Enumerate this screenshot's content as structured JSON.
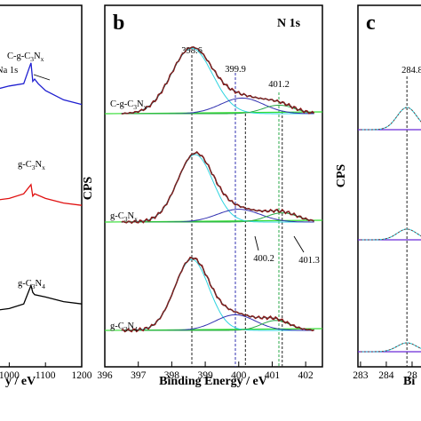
{
  "colors": {
    "panel_a": {
      "C-g-C3Nx": "#1f1fd0",
      "g-C3Nx": "#e01010",
      "g-C3N4": "#000000"
    },
    "raw_data": "#8b1a1a",
    "fit": "#3a3a3a",
    "peak1": "#2fd4e0",
    "peak2": "#3030b0",
    "peak3": "#2aa84a",
    "baseline": "#33dd33"
  },
  "chart_data": [
    {
      "panel": "a",
      "type": "line",
      "title": "",
      "xlabel": "y / eV",
      "x_ticks": [
        "00",
        "1000",
        "1100",
        "1200"
      ],
      "xlim": [
        950,
        1200
      ],
      "series": [
        {
          "key": "C-g-C3Nx",
          "label_main": "C-g-C",
          "label_sub1": "3",
          "label_mid": "N",
          "label_sub2": "x",
          "x": [
            950,
            1000,
            1040,
            1060,
            1065,
            1070,
            1080,
            1100,
            1150,
            1200
          ],
          "y": [
            0.0,
            0.2,
            0.3,
            1.2,
            0.4,
            0.5,
            0.3,
            0.0,
            -0.4,
            -0.6
          ]
        },
        {
          "key": "g-C3Nx",
          "label_main": "g-C",
          "label_sub1": "3",
          "label_mid": "N",
          "label_sub2": "x",
          "x": [
            950,
            1000,
            1040,
            1060,
            1065,
            1070,
            1100,
            1150,
            1200
          ],
          "y": [
            0.0,
            0.1,
            0.3,
            0.7,
            0.2,
            0.3,
            0.1,
            -0.1,
            -0.2
          ]
        },
        {
          "key": "g-C3N4",
          "label_main": "g-C",
          "label_sub1": "3",
          "label_mid": "N",
          "label_sub2": "4",
          "x": [
            950,
            1000,
            1040,
            1060,
            1065,
            1070,
            1100,
            1150,
            1200
          ],
          "y": [
            0.0,
            0.1,
            0.3,
            1.1,
            0.8,
            0.7,
            0.6,
            0.4,
            0.3
          ]
        }
      ],
      "annotation": "Na 1s"
    },
    {
      "panel": "b",
      "type": "line",
      "title": "N 1s",
      "xlabel": "Binding Energy / eV",
      "ylabel": "CPS",
      "xlim": [
        396,
        402.5
      ],
      "x_ticks": [
        396,
        397,
        398,
        399,
        400,
        401,
        402
      ],
      "reference_lines": [
        {
          "x": 398.6,
          "label": "398.6",
          "color": "#222222"
        },
        {
          "x": 399.9,
          "label": "399.9",
          "color": "#3030b0"
        },
        {
          "x": 400.2,
          "label": "",
          "color": "#222222"
        },
        {
          "x": 401.2,
          "label": "401.2",
          "color": "#2aa84a"
        },
        {
          "x": 401.3,
          "label": "",
          "color": "#222222"
        }
      ],
      "callouts": [
        {
          "x": 400.2,
          "label": "400.2"
        },
        {
          "x": 401.3,
          "label": "401.3"
        }
      ],
      "spectra": [
        {
          "key": "C-g-C3Nx",
          "label_main": "C-g-C",
          "label_sub1": "3",
          "label_mid": "N",
          "label_sub2": "x",
          "peaks": [
            {
              "center": 398.6,
              "height": 0.92,
              "fwhm": 1.45
            },
            {
              "center": 400.1,
              "height": 0.22,
              "fwhm": 1.5
            },
            {
              "center": 401.2,
              "height": 0.12,
              "fwhm": 1.1
            }
          ]
        },
        {
          "key": "g-C3Nx",
          "label_main": "g-C",
          "label_sub1": "3",
          "label_mid": "N",
          "label_sub2": "x",
          "peaks": [
            {
              "center": 398.7,
              "height": 0.95,
              "fwhm": 1.25
            },
            {
              "center": 400.0,
              "height": 0.18,
              "fwhm": 1.5
            },
            {
              "center": 401.3,
              "height": 0.13,
              "fwhm": 1.1
            }
          ]
        },
        {
          "key": "g-C3N4",
          "label_main": "g-C",
          "label_sub1": "3",
          "label_mid": "N",
          "label_sub2": "4",
          "peaks": [
            {
              "center": 398.6,
              "height": 1.0,
              "fwhm": 1.2
            },
            {
              "center": 399.9,
              "height": 0.22,
              "fwhm": 1.4
            },
            {
              "center": 401.1,
              "height": 0.14,
              "fwhm": 1.0
            }
          ]
        }
      ]
    },
    {
      "panel": "c",
      "type": "line",
      "xlabel": "Bi",
      "ylabel": "CPS",
      "xlim": [
        282.9,
        286
      ],
      "x_ticks": [
        "283",
        "284",
        "28"
      ],
      "reference_lines": [
        {
          "x": 284.8,
          "label": "284.8",
          "color": "#222222"
        }
      ],
      "spectra": [
        {
          "height": 0.25,
          "center": 284.8,
          "fwhm": 0.9
        },
        {
          "height": 0.12,
          "center": 284.8,
          "fwhm": 0.9
        },
        {
          "height": 0.1,
          "center": 284.8,
          "fwhm": 0.9
        }
      ]
    }
  ]
}
